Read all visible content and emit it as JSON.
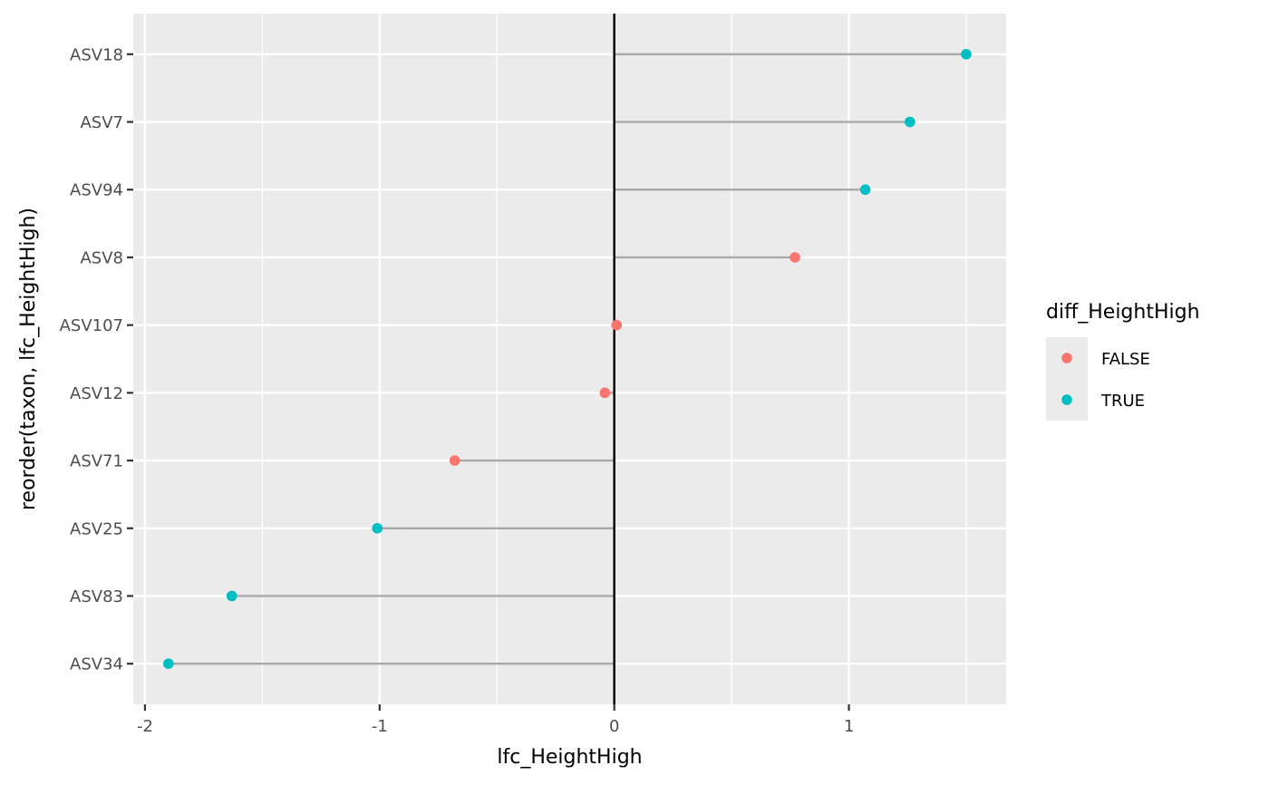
{
  "chart_data": {
    "type": "scatter",
    "subtype": "lollipop",
    "xlabel": "lfc_HeightHigh",
    "ylabel": "reorder(taxon, lfc_HeightHigh)",
    "xlim": [
      -2.05,
      1.67
    ],
    "x_ticks": [
      "-2",
      "-1",
      "0",
      "1"
    ],
    "x_tick_values": [
      -2,
      -1,
      0,
      1
    ],
    "reference_line_x": 0,
    "grid": true,
    "legend": {
      "title": "diff_HeightHigh",
      "placement": "right",
      "entries": [
        {
          "label": "FALSE",
          "color": "#F8766D"
        },
        {
          "label": "TRUE",
          "color": "#00BFC4"
        }
      ]
    },
    "points": [
      {
        "taxon": "ASV18",
        "lfc": 1.5,
        "diff": "TRUE"
      },
      {
        "taxon": "ASV7",
        "lfc": 1.26,
        "diff": "TRUE"
      },
      {
        "taxon": "ASV94",
        "lfc": 1.07,
        "diff": "TRUE"
      },
      {
        "taxon": "ASV8",
        "lfc": 0.77,
        "diff": "FALSE"
      },
      {
        "taxon": "ASV107",
        "lfc": 0.01,
        "diff": "FALSE"
      },
      {
        "taxon": "ASV12",
        "lfc": -0.04,
        "diff": "FALSE"
      },
      {
        "taxon": "ASV71",
        "lfc": -0.68,
        "diff": "FALSE"
      },
      {
        "taxon": "ASV25",
        "lfc": -1.01,
        "diff": "TRUE"
      },
      {
        "taxon": "ASV83",
        "lfc": -1.63,
        "diff": "TRUE"
      },
      {
        "taxon": "ASV34",
        "lfc": -1.9,
        "diff": "TRUE"
      }
    ]
  },
  "colors": {
    "panel": "#EBEBEB",
    "grid": "#FFFFFF",
    "segment": "#A9A9A9",
    "zero_line": "#000000",
    "false": "#F8766D",
    "true": "#00BFC4"
  }
}
